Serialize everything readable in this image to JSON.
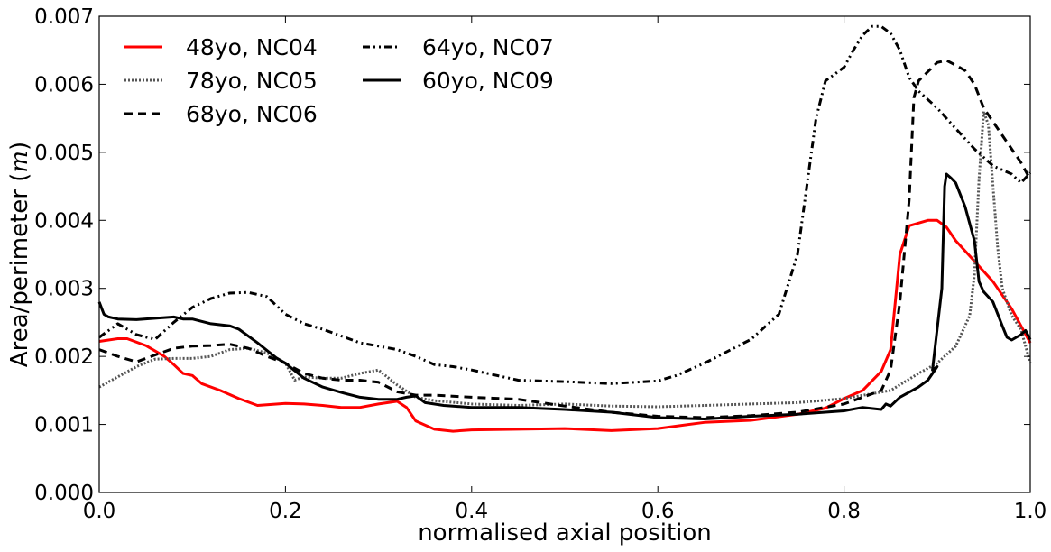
{
  "chart_data": {
    "type": "line",
    "title": "",
    "xlabel": "normalised axial position",
    "ylabel": "Area/perimeter",
    "ylabel_unit": "m",
    "xlim": [
      0,
      1
    ],
    "ylim": [
      0,
      0.007
    ],
    "xticks": [
      0,
      0.2,
      0.4,
      0.6,
      0.8,
      1.0
    ],
    "xtick_labels": [
      "0.0",
      "0.2",
      "0.4",
      "0.6",
      "0.8",
      "1.0"
    ],
    "yticks": [
      0,
      0.001,
      0.002,
      0.003,
      0.004,
      0.005,
      0.006,
      0.007
    ],
    "ytick_labels": [
      "0.000",
      "0.001",
      "0.002",
      "0.003",
      "0.004",
      "0.005",
      "0.006",
      "0.007"
    ],
    "grid": false,
    "legend_position": "top-left",
    "series": [
      {
        "name": "48yo, NC04",
        "color": "#ff0000",
        "style": "solid",
        "points": [
          [
            0,
            0.00222
          ],
          [
            0.02,
            0.00226
          ],
          [
            0.03,
            0.00226
          ],
          [
            0.05,
            0.00216
          ],
          [
            0.07,
            0.002
          ],
          [
            0.08,
            0.00188
          ],
          [
            0.09,
            0.00175
          ],
          [
            0.1,
            0.00172
          ],
          [
            0.11,
            0.0016
          ],
          [
            0.13,
            0.0015
          ],
          [
            0.15,
            0.00138
          ],
          [
            0.17,
            0.00128
          ],
          [
            0.18,
            0.00129
          ],
          [
            0.2,
            0.00131
          ],
          [
            0.22,
            0.0013
          ],
          [
            0.24,
            0.00128
          ],
          [
            0.26,
            0.00125
          ],
          [
            0.28,
            0.00125
          ],
          [
            0.3,
            0.0013
          ],
          [
            0.32,
            0.00134
          ],
          [
            0.33,
            0.00125
          ],
          [
            0.34,
            0.00105
          ],
          [
            0.36,
            0.00093
          ],
          [
            0.38,
            0.0009
          ],
          [
            0.4,
            0.00092
          ],
          [
            0.45,
            0.00093
          ],
          [
            0.5,
            0.00094
          ],
          [
            0.55,
            0.00091
          ],
          [
            0.6,
            0.00094
          ],
          [
            0.65,
            0.00103
          ],
          [
            0.7,
            0.00106
          ],
          [
            0.75,
            0.00115
          ],
          [
            0.78,
            0.00124
          ],
          [
            0.8,
            0.00138
          ],
          [
            0.82,
            0.0015
          ],
          [
            0.84,
            0.00178
          ],
          [
            0.85,
            0.0021
          ],
          [
            0.855,
            0.0028
          ],
          [
            0.86,
            0.0035
          ],
          [
            0.87,
            0.00392
          ],
          [
            0.89,
            0.004
          ],
          [
            0.9,
            0.004
          ],
          [
            0.91,
            0.0039
          ],
          [
            0.92,
            0.0037
          ],
          [
            0.94,
            0.0034
          ],
          [
            0.96,
            0.0031
          ],
          [
            0.98,
            0.0027
          ],
          [
            1.0,
            0.0022
          ]
        ]
      },
      {
        "name": "78yo, NC05",
        "color": "#555555",
        "style": "dotted",
        "points": [
          [
            0,
            0.00155
          ],
          [
            0.02,
            0.0017
          ],
          [
            0.04,
            0.00185
          ],
          [
            0.06,
            0.00196
          ],
          [
            0.08,
            0.00197
          ],
          [
            0.1,
            0.00197
          ],
          [
            0.12,
            0.002
          ],
          [
            0.14,
            0.0021
          ],
          [
            0.16,
            0.00212
          ],
          [
            0.18,
            0.00205
          ],
          [
            0.2,
            0.0019
          ],
          [
            0.21,
            0.00165
          ],
          [
            0.22,
            0.0017
          ],
          [
            0.24,
            0.00168
          ],
          [
            0.26,
            0.00168
          ],
          [
            0.28,
            0.00175
          ],
          [
            0.3,
            0.0018
          ],
          [
            0.32,
            0.00158
          ],
          [
            0.34,
            0.0014
          ],
          [
            0.36,
            0.00135
          ],
          [
            0.4,
            0.0013
          ],
          [
            0.45,
            0.00128
          ],
          [
            0.5,
            0.0013
          ],
          [
            0.55,
            0.00127
          ],
          [
            0.6,
            0.00126
          ],
          [
            0.65,
            0.00128
          ],
          [
            0.7,
            0.0013
          ],
          [
            0.75,
            0.00132
          ],
          [
            0.8,
            0.00138
          ],
          [
            0.85,
            0.0015
          ],
          [
            0.88,
            0.00175
          ],
          [
            0.9,
            0.0019
          ],
          [
            0.92,
            0.00215
          ],
          [
            0.935,
            0.0026
          ],
          [
            0.94,
            0.0032
          ],
          [
            0.945,
            0.0046
          ],
          [
            0.95,
            0.0056
          ],
          [
            0.955,
            0.0054
          ],
          [
            0.96,
            0.0045
          ],
          [
            0.965,
            0.0036
          ],
          [
            0.97,
            0.003
          ],
          [
            0.98,
            0.0026
          ],
          [
            0.99,
            0.0024
          ],
          [
            1.0,
            0.0019
          ]
        ]
      },
      {
        "name": "68yo, NC06",
        "color": "#000000",
        "style": "dashed",
        "points": [
          [
            0,
            0.0021
          ],
          [
            0.02,
            0.002
          ],
          [
            0.04,
            0.00192
          ],
          [
            0.06,
            0.00202
          ],
          [
            0.08,
            0.00212
          ],
          [
            0.1,
            0.00215
          ],
          [
            0.12,
            0.00216
          ],
          [
            0.14,
            0.00218
          ],
          [
            0.16,
            0.00212
          ],
          [
            0.18,
            0.002
          ],
          [
            0.2,
            0.0019
          ],
          [
            0.22,
            0.00175
          ],
          [
            0.24,
            0.00168
          ],
          [
            0.26,
            0.00165
          ],
          [
            0.28,
            0.00165
          ],
          [
            0.3,
            0.00162
          ],
          [
            0.32,
            0.00148
          ],
          [
            0.34,
            0.00143
          ],
          [
            0.36,
            0.00143
          ],
          [
            0.4,
            0.0014
          ],
          [
            0.45,
            0.00137
          ],
          [
            0.5,
            0.00127
          ],
          [
            0.55,
            0.00118
          ],
          [
            0.6,
            0.00112
          ],
          [
            0.65,
            0.0011
          ],
          [
            0.7,
            0.00113
          ],
          [
            0.75,
            0.00118
          ],
          [
            0.8,
            0.0013
          ],
          [
            0.82,
            0.0014
          ],
          [
            0.84,
            0.0015
          ],
          [
            0.85,
            0.0018
          ],
          [
            0.86,
            0.0028
          ],
          [
            0.87,
            0.0043
          ],
          [
            0.875,
            0.0058
          ],
          [
            0.88,
            0.00605
          ],
          [
            0.9,
            0.00632
          ],
          [
            0.91,
            0.00635
          ],
          [
            0.92,
            0.00628
          ],
          [
            0.93,
            0.0062
          ],
          [
            0.94,
            0.006
          ],
          [
            0.95,
            0.00565
          ],
          [
            0.97,
            0.00525
          ],
          [
            0.99,
            0.00485
          ],
          [
            1.0,
            0.0046
          ]
        ]
      },
      {
        "name": "64yo, NC07",
        "color": "#000000",
        "style": "dashdotdot",
        "points": [
          [
            0,
            0.00228
          ],
          [
            0.02,
            0.00248
          ],
          [
            0.04,
            0.00232
          ],
          [
            0.06,
            0.00225
          ],
          [
            0.08,
            0.0025
          ],
          [
            0.1,
            0.00272
          ],
          [
            0.12,
            0.00285
          ],
          [
            0.14,
            0.00293
          ],
          [
            0.16,
            0.00294
          ],
          [
            0.18,
            0.00288
          ],
          [
            0.2,
            0.00262
          ],
          [
            0.22,
            0.00248
          ],
          [
            0.24,
            0.0024
          ],
          [
            0.26,
            0.0023
          ],
          [
            0.28,
            0.0022
          ],
          [
            0.3,
            0.00215
          ],
          [
            0.32,
            0.0021
          ],
          [
            0.34,
            0.002
          ],
          [
            0.36,
            0.00188
          ],
          [
            0.38,
            0.00185
          ],
          [
            0.4,
            0.0018
          ],
          [
            0.45,
            0.00165
          ],
          [
            0.5,
            0.00163
          ],
          [
            0.55,
            0.0016
          ],
          [
            0.6,
            0.00164
          ],
          [
            0.62,
            0.00172
          ],
          [
            0.65,
            0.0019
          ],
          [
            0.7,
            0.00225
          ],
          [
            0.73,
            0.00262
          ],
          [
            0.75,
            0.0035
          ],
          [
            0.76,
            0.0045
          ],
          [
            0.77,
            0.0055
          ],
          [
            0.78,
            0.00605
          ],
          [
            0.8,
            0.00625
          ],
          [
            0.81,
            0.0065
          ],
          [
            0.82,
            0.00672
          ],
          [
            0.83,
            0.00685
          ],
          [
            0.84,
            0.00685
          ],
          [
            0.85,
            0.00675
          ],
          [
            0.86,
            0.0065
          ],
          [
            0.87,
            0.0061
          ],
          [
            0.88,
            0.0059
          ],
          [
            0.9,
            0.00565
          ],
          [
            0.92,
            0.00535
          ],
          [
            0.94,
            0.00505
          ],
          [
            0.96,
            0.0048
          ],
          [
            0.98,
            0.00468
          ],
          [
            0.99,
            0.00455
          ],
          [
            1.0,
            0.0047
          ]
        ]
      },
      {
        "name": "60yo, NC09",
        "color": "#000000",
        "style": "solid",
        "points": [
          [
            0,
            0.0028
          ],
          [
            0.005,
            0.00262
          ],
          [
            0.01,
            0.00258
          ],
          [
            0.02,
            0.00255
          ],
          [
            0.04,
            0.00254
          ],
          [
            0.06,
            0.00256
          ],
          [
            0.08,
            0.00258
          ],
          [
            0.09,
            0.00255
          ],
          [
            0.1,
            0.00255
          ],
          [
            0.12,
            0.00248
          ],
          [
            0.14,
            0.00245
          ],
          [
            0.15,
            0.0024
          ],
          [
            0.17,
            0.0022
          ],
          [
            0.19,
            0.00198
          ],
          [
            0.2,
            0.0019
          ],
          [
            0.22,
            0.00168
          ],
          [
            0.24,
            0.00155
          ],
          [
            0.26,
            0.00147
          ],
          [
            0.28,
            0.0014
          ],
          [
            0.3,
            0.00137
          ],
          [
            0.32,
            0.00137
          ],
          [
            0.33,
            0.0014
          ],
          [
            0.34,
            0.00142
          ],
          [
            0.35,
            0.00132
          ],
          [
            0.37,
            0.00128
          ],
          [
            0.4,
            0.00125
          ],
          [
            0.45,
            0.00125
          ],
          [
            0.5,
            0.00122
          ],
          [
            0.55,
            0.00118
          ],
          [
            0.6,
            0.0011
          ],
          [
            0.65,
            0.00108
          ],
          [
            0.7,
            0.00112
          ],
          [
            0.75,
            0.00115
          ],
          [
            0.8,
            0.0012
          ],
          [
            0.82,
            0.00125
          ],
          [
            0.84,
            0.00122
          ],
          [
            0.845,
            0.0013
          ],
          [
            0.85,
            0.00127
          ],
          [
            0.86,
            0.0014
          ],
          [
            0.88,
            0.00155
          ],
          [
            0.89,
            0.00165
          ],
          [
            0.9,
            0.00185
          ],
          [
            0.895,
            0.0018
          ],
          [
            0.905,
            0.003
          ],
          [
            0.908,
            0.0045
          ],
          [
            0.91,
            0.00468
          ],
          [
            0.915,
            0.00462
          ],
          [
            0.92,
            0.00455
          ],
          [
            0.93,
            0.0042
          ],
          [
            0.94,
            0.0037
          ],
          [
            0.945,
            0.0031
          ],
          [
            0.95,
            0.00295
          ],
          [
            0.96,
            0.0028
          ],
          [
            0.97,
            0.00245
          ],
          [
            0.975,
            0.00228
          ],
          [
            0.98,
            0.00224
          ],
          [
            0.99,
            0.00232
          ],
          [
            0.995,
            0.00238
          ],
          [
            1.0,
            0.00225
          ]
        ]
      }
    ]
  }
}
